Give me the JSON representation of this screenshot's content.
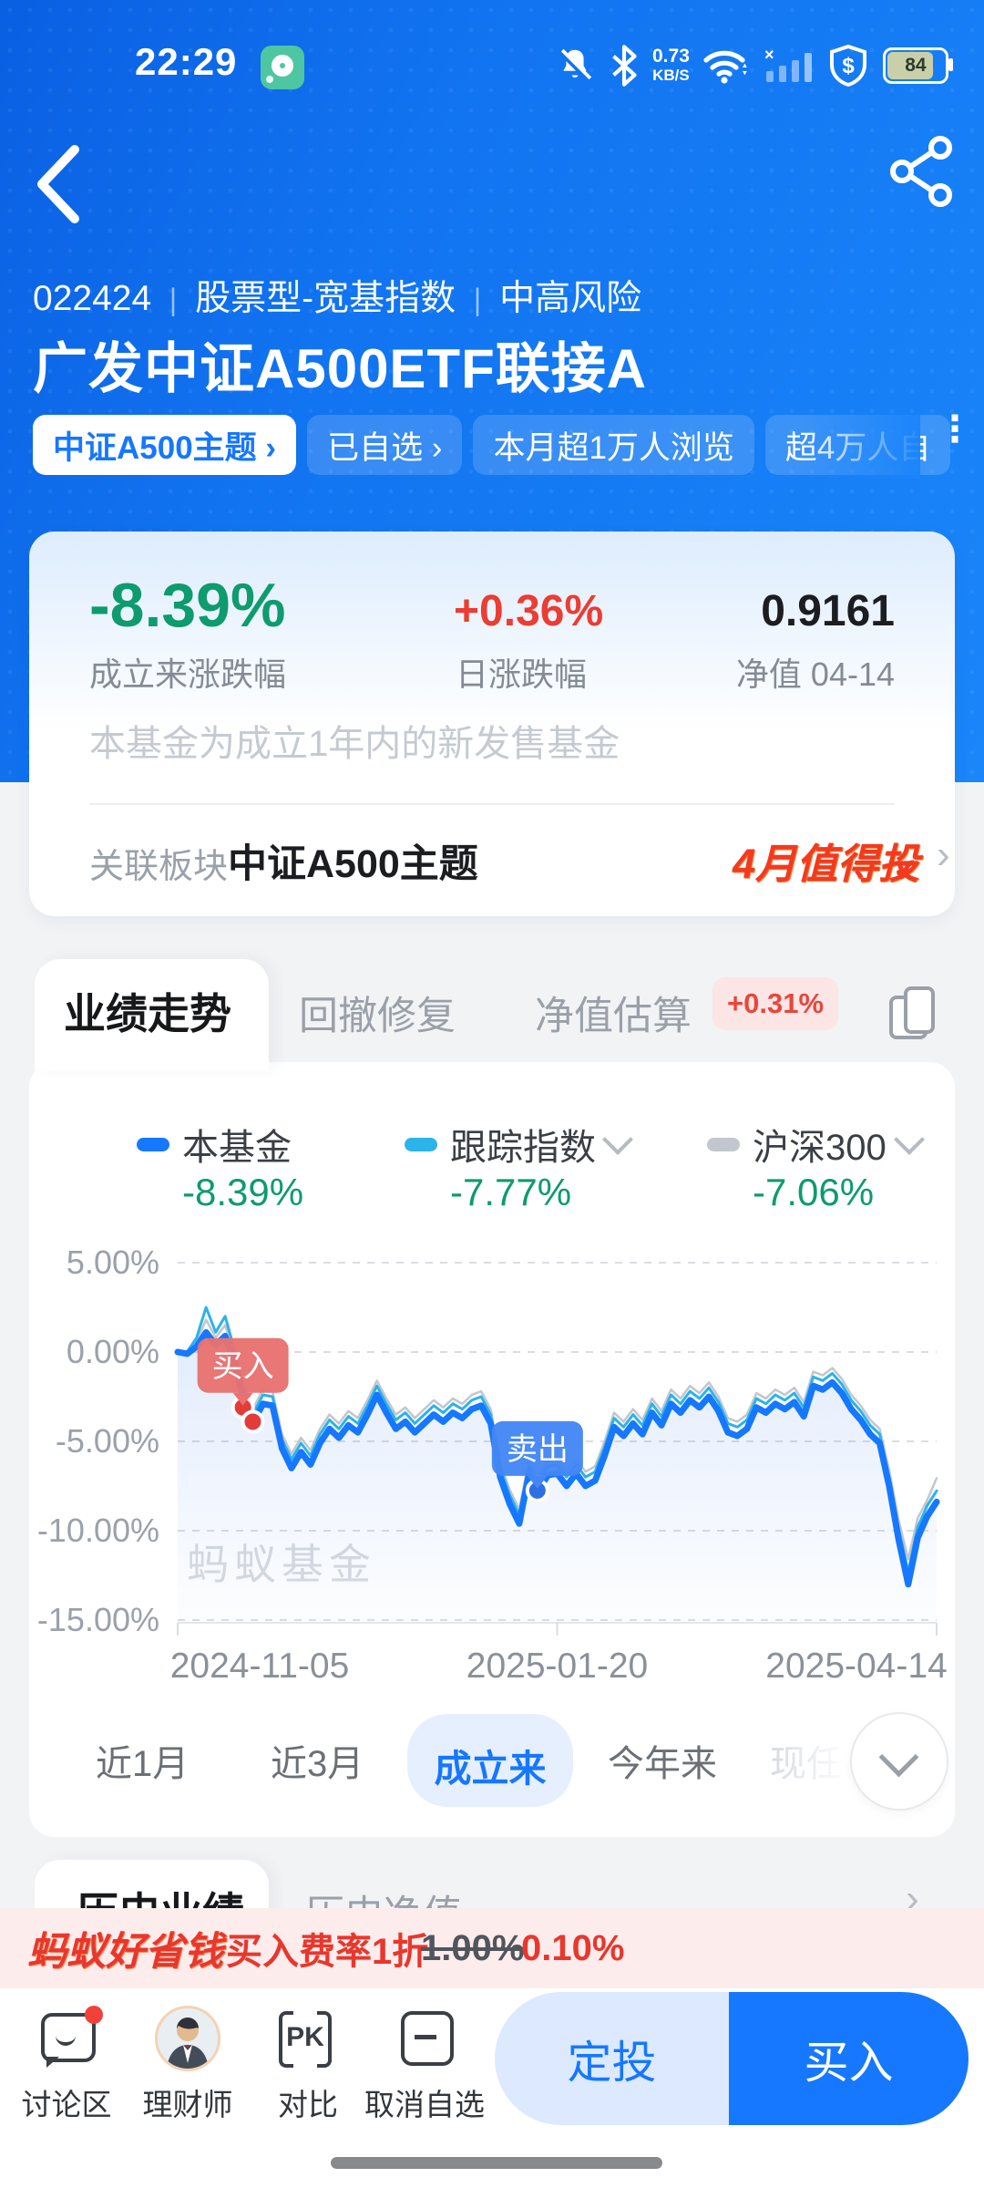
{
  "icons": {
    "chevron_right": "›",
    "ellipsis_v": "⋮",
    "check": "✔"
  },
  "status_bar": {
    "time": "22:29",
    "speed_value": "0.73",
    "speed_unit": "KB/S",
    "battery": "84"
  },
  "header": {
    "code": "022424",
    "divider": "∣",
    "category": "股票型-宽基指数",
    "risk": "中高风险",
    "title": "广发中证A500ETF联接A",
    "tags": [
      {
        "label": "中证A500主题 ›",
        "style": "solid"
      },
      {
        "label": "已自选 ›",
        "style": "ghost"
      },
      {
        "label": "本月超1万人浏览",
        "style": "ghost"
      },
      {
        "label": "超4万人自",
        "style": "ghost"
      }
    ]
  },
  "stats": {
    "items": [
      {
        "value": "-8.39%",
        "label": "成立来涨跌幅",
        "color": "#0e9b6d"
      },
      {
        "value": "+0.36%",
        "label": "日涨跌幅",
        "color": "#ea3d33"
      },
      {
        "value": "0.9161",
        "label": "净值 04-14",
        "color": "#1b1d21"
      }
    ],
    "notice": "本基金为成立1年内的新发售基金",
    "related_label": "关联板块",
    "related_value": "中证A500主题",
    "promo": "4月值得投"
  },
  "perf_card": {
    "tabs": [
      {
        "label": "业绩走势",
        "active": true
      },
      {
        "label": "回撤修复",
        "active": false
      },
      {
        "label": "净值估算",
        "active": false,
        "badge": "+0.31%"
      }
    ],
    "legend": [
      {
        "name": "本基金",
        "value": "-8.39%",
        "color": "#1677ff",
        "dropdown": false
      },
      {
        "name": "跟踪指数",
        "value": "-7.77%",
        "color": "#2bb3ea",
        "dropdown": true
      },
      {
        "name": "沪深300",
        "value": "-7.06%",
        "color": "#c2c6ce",
        "dropdown": true
      }
    ],
    "periods": [
      {
        "label": "近1月",
        "active": false
      },
      {
        "label": "近3月",
        "active": false
      },
      {
        "label": "成立来",
        "active": true
      },
      {
        "label": "今年来",
        "active": false
      },
      {
        "label": "现任",
        "active": false
      }
    ]
  },
  "chart_data": {
    "type": "line",
    "title": "业绩走势",
    "watermark": "蚂蚁基金",
    "x_labels": [
      "2024-11-05",
      "2025-01-20",
      "2025-04-14"
    ],
    "y_ticks": [
      5,
      0,
      -5,
      -10,
      -15
    ],
    "y_tick_labels": [
      "5.00%",
      "0.00%",
      "-5.00%",
      "-10.00%",
      "-15.00%"
    ],
    "ylim": [
      -15,
      5
    ],
    "grid": true,
    "legend_position": "top",
    "series": [
      {
        "name": "本基金",
        "color": "#1677ff",
        "width": 7,
        "fill": true,
        "values": [
          0.0,
          -0.1,
          0.3,
          1.1,
          0.4,
          0.9,
          -0.6,
          -2.7,
          -3.9,
          -2.9,
          -3.0,
          -5.4,
          -6.5,
          -5.6,
          -6.3,
          -5.1,
          -4.3,
          -4.8,
          -4.1,
          -4.5,
          -3.5,
          -2.4,
          -3.4,
          -4.3,
          -3.9,
          -4.5,
          -4.0,
          -3.5,
          -3.9,
          -3.4,
          -3.7,
          -3.2,
          -3.0,
          -4.0,
          -7.0,
          -8.5,
          -9.6,
          -6.9,
          -7.8,
          -6.9,
          -6.8,
          -7.5,
          -6.8,
          -7.5,
          -7.2,
          -5.8,
          -4.2,
          -4.7,
          -4.0,
          -4.6,
          -3.4,
          -4.1,
          -2.9,
          -3.4,
          -2.7,
          -3.1,
          -2.5,
          -3.3,
          -4.5,
          -4.7,
          -4.3,
          -3.1,
          -3.4,
          -2.9,
          -3.2,
          -2.8,
          -3.6,
          -1.9,
          -2.1,
          -1.7,
          -2.3,
          -3.2,
          -3.8,
          -4.6,
          -5.1,
          -7.5,
          -10.5,
          -13.0,
          -10.4,
          -9.2,
          -8.39
        ]
      },
      {
        "name": "跟踪指数",
        "color": "#2bb3ea",
        "width": 3,
        "fill": false,
        "values": [
          0.1,
          0.0,
          0.8,
          2.5,
          1.1,
          2.0,
          0.1,
          -2.2,
          -3.4,
          -2.4,
          -2.5,
          -4.9,
          -6.0,
          -5.1,
          -5.8,
          -4.6,
          -3.8,
          -4.3,
          -3.6,
          -4.0,
          -3.0,
          -1.9,
          -2.9,
          -3.8,
          -3.4,
          -4.0,
          -3.5,
          -3.0,
          -3.4,
          -2.9,
          -3.2,
          -2.7,
          -2.5,
          -3.5,
          -6.5,
          -8.0,
          -9.1,
          -6.4,
          -7.3,
          -6.4,
          -6.3,
          -7.0,
          -6.3,
          -7.0,
          -6.7,
          -5.3,
          -3.7,
          -4.2,
          -3.5,
          -4.1,
          -2.9,
          -3.6,
          -2.4,
          -2.9,
          -2.2,
          -2.6,
          -2.0,
          -2.8,
          -4.0,
          -4.2,
          -3.8,
          -2.6,
          -2.9,
          -2.4,
          -2.7,
          -2.3,
          -3.1,
          -1.4,
          -1.6,
          -1.2,
          -1.8,
          -2.7,
          -3.3,
          -4.1,
          -4.6,
          -7.0,
          -9.9,
          -12.3,
          -9.8,
          -8.6,
          -7.77
        ]
      },
      {
        "name": "沪深300",
        "color": "#c2c6ce",
        "width": 2.5,
        "fill": false,
        "values": [
          0.05,
          -0.05,
          0.6,
          1.8,
          0.8,
          1.5,
          -0.2,
          -1.9,
          -3.1,
          -2.1,
          -2.2,
          -4.6,
          -5.7,
          -4.8,
          -5.5,
          -4.3,
          -3.5,
          -4.0,
          -3.3,
          -3.7,
          -2.7,
          -1.6,
          -2.6,
          -3.5,
          -3.1,
          -3.7,
          -3.2,
          -2.7,
          -3.1,
          -2.6,
          -2.9,
          -2.4,
          -2.2,
          -3.2,
          -6.2,
          -7.7,
          -8.8,
          -6.1,
          -7.0,
          -6.1,
          -6.0,
          -6.7,
          -6.0,
          -6.7,
          -6.4,
          -5.0,
          -3.4,
          -3.9,
          -3.2,
          -3.8,
          -2.6,
          -3.3,
          -2.1,
          -2.6,
          -1.9,
          -2.3,
          -1.7,
          -2.5,
          -3.7,
          -3.9,
          -3.5,
          -2.3,
          -2.6,
          -2.1,
          -2.4,
          -2.0,
          -2.8,
          -1.1,
          -1.3,
          -0.9,
          -1.5,
          -2.4,
          -3.0,
          -3.8,
          -4.3,
          -6.6,
          -9.4,
          -11.6,
          -9.3,
          -8.3,
          -7.06
        ]
      }
    ],
    "markers": [
      {
        "type": "buy",
        "label": "买入",
        "color": "#e87170",
        "dot_color": "#e23b38",
        "dots": [
          {
            "x_frac": 0.086,
            "value": -3.1
          },
          {
            "x_frac": 0.099,
            "value": -3.9
          }
        ]
      },
      {
        "type": "sell",
        "label": "卖出",
        "color": "#4386f5",
        "dot_color": "#2f6fe4",
        "dots": [
          {
            "x_frac": 0.474,
            "value": -7.75
          }
        ]
      }
    ]
  },
  "history_card": {
    "tabs": [
      {
        "label": "历史业绩",
        "active": true
      },
      {
        "label": "历史净值",
        "active": false
      }
    ]
  },
  "banner": {
    "brand": "蚂蚁好省钱",
    "text": "买入费率1折",
    "old_rate": "1.00%",
    "new_rate": "0.10%"
  },
  "bottom_nav": {
    "items": [
      {
        "label": "讨论区",
        "icon": "chat",
        "badge": true
      },
      {
        "label": "理财师",
        "icon": "avatar"
      },
      {
        "label": "对比",
        "icon": "pk",
        "icon_text": "PK"
      },
      {
        "label": "取消自选",
        "icon": "minus-square"
      }
    ],
    "aip_label": "定投",
    "buy_label": "买入"
  }
}
